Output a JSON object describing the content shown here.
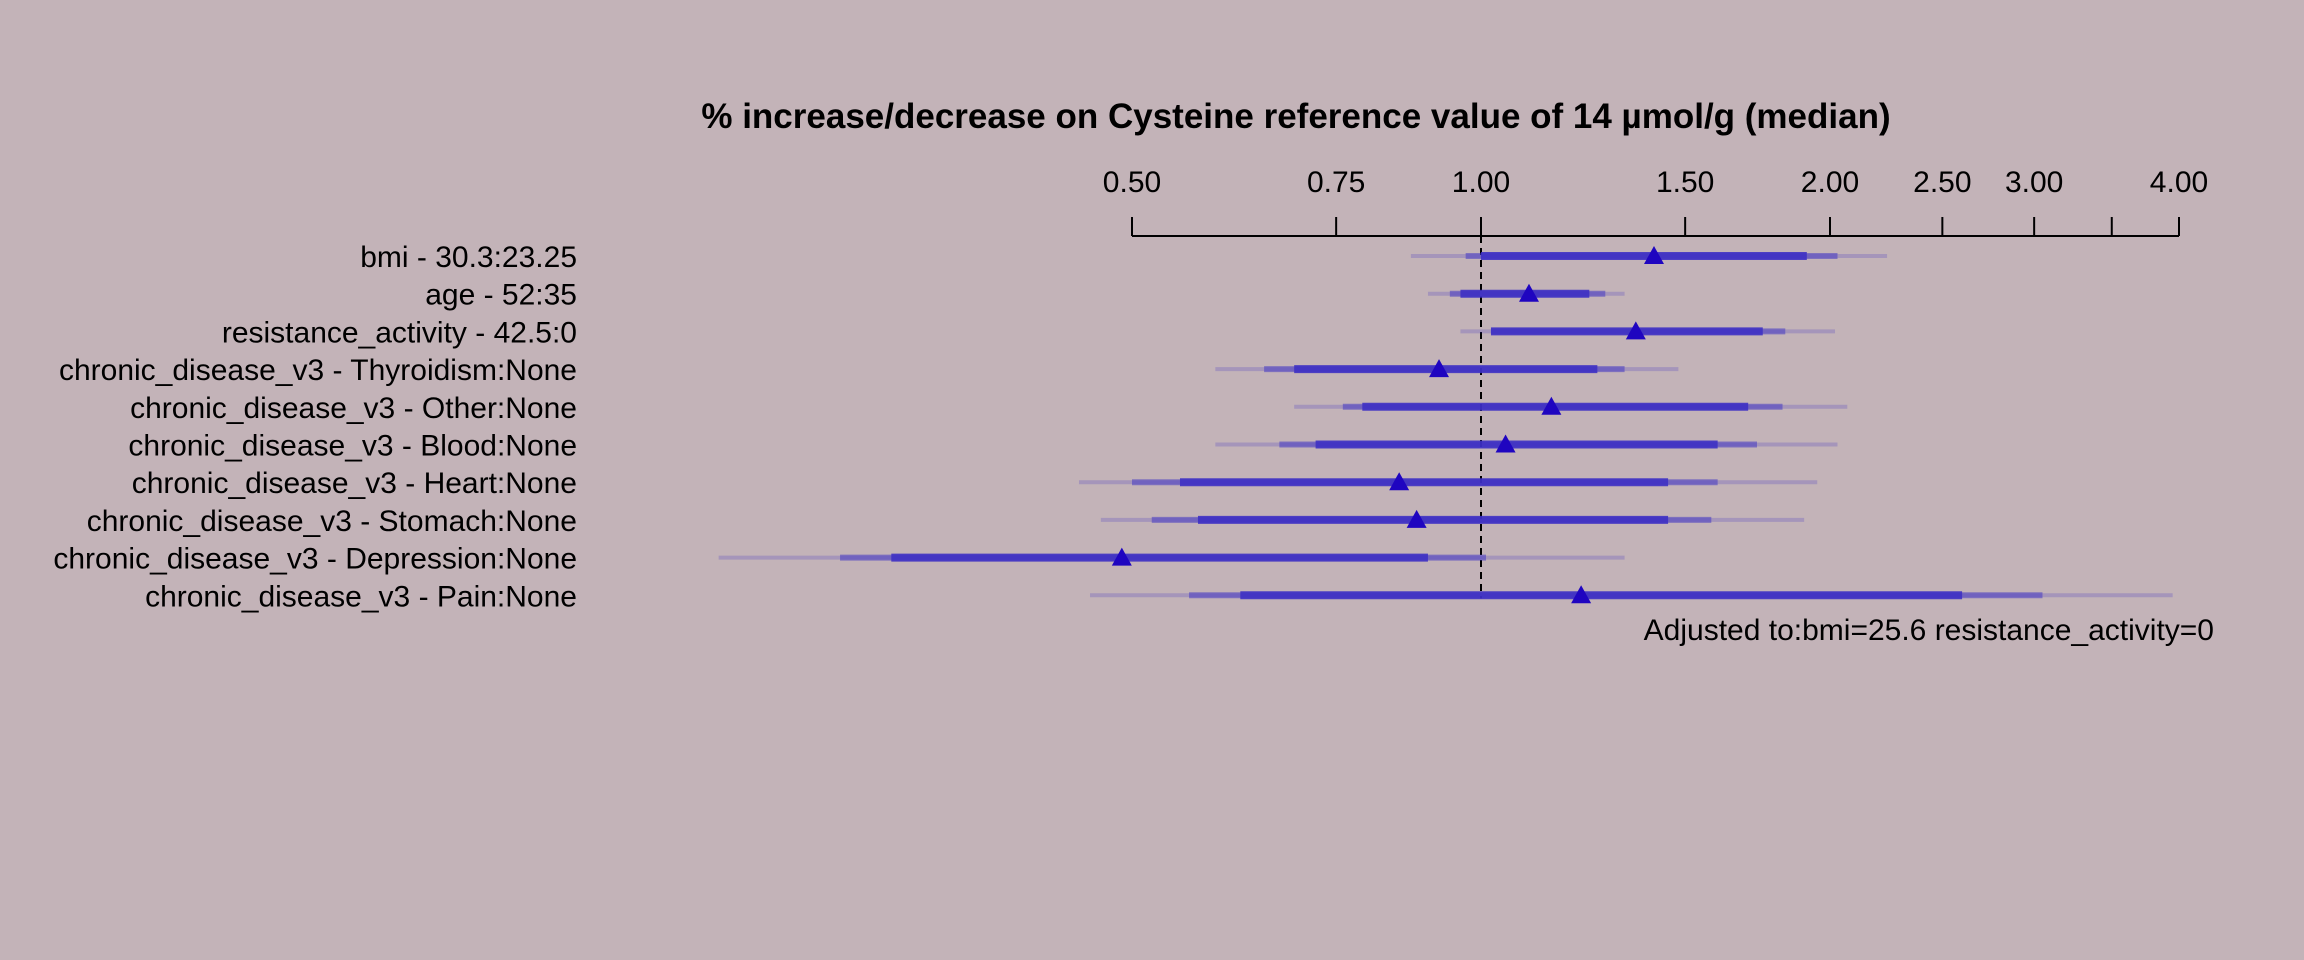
{
  "chart_data": {
    "type": "forest",
    "title": "% increase/decrease on Cysteine reference value of 14 µmol/g (median)",
    "scale": "log",
    "xlim": [
      0.5,
      4.0
    ],
    "ticks": [
      {
        "value": 0.5,
        "label": "0.50"
      },
      {
        "value": 0.75,
        "label": "0.75"
      },
      {
        "value": 1.0,
        "label": "1.00"
      },
      {
        "value": 1.5,
        "label": "1.50"
      },
      {
        "value": 2.0,
        "label": "2.00"
      },
      {
        "value": 2.5,
        "label": "2.50"
      },
      {
        "value": 3.0,
        "label": "3.00"
      },
      {
        "value": 3.5,
        "label": ""
      },
      {
        "value": 4.0,
        "label": "4.00"
      }
    ],
    "reference_line": 1.0,
    "annotation": "Adjusted to:bmi=25.6 resistance_activity=0",
    "colors": {
      "background": "#c3b3b8",
      "bar": "#3c2fc4",
      "point": "#1f05c0",
      "ink": "#000000"
    },
    "rows": [
      {
        "label": "bmi - 30.3:23.25",
        "estimate": 1.41,
        "ci90": [
          1.0,
          1.91
        ],
        "ci95": [
          0.97,
          2.03
        ],
        "ci99": [
          0.87,
          2.24
        ]
      },
      {
        "label": "age - 52:35",
        "estimate": 1.1,
        "ci90": [
          0.96,
          1.24
        ],
        "ci95": [
          0.94,
          1.28
        ],
        "ci99": [
          0.9,
          1.33
        ]
      },
      {
        "label": "resistance_activity - 42.5:0",
        "estimate": 1.36,
        "ci90": [
          1.02,
          1.75
        ],
        "ci95": [
          1.02,
          1.83
        ],
        "ci99": [
          0.96,
          2.02
        ]
      },
      {
        "label": "chronic_disease_v3 - Thyroidism:None",
        "estimate": 0.92,
        "ci90": [
          0.69,
          1.26
        ],
        "ci95": [
          0.65,
          1.33
        ],
        "ci99": [
          0.59,
          1.48
        ]
      },
      {
        "label": "chronic_disease_v3 - Other:None",
        "estimate": 1.15,
        "ci90": [
          0.79,
          1.7
        ],
        "ci95": [
          0.76,
          1.82
        ],
        "ci99": [
          0.69,
          2.07
        ]
      },
      {
        "label": "chronic_disease_v3 - Blood:None",
        "estimate": 1.05,
        "ci90": [
          0.72,
          1.6
        ],
        "ci95": [
          0.67,
          1.73
        ],
        "ci99": [
          0.59,
          2.03
        ]
      },
      {
        "label": "chronic_disease_v3 - Heart:None",
        "estimate": 0.85,
        "ci90": [
          0.55,
          1.45
        ],
        "ci95": [
          0.5,
          1.6
        ],
        "ci99": [
          0.45,
          1.95
        ]
      },
      {
        "label": "chronic_disease_v3 - Stomach:None",
        "estimate": 0.88,
        "ci90": [
          0.57,
          1.45
        ],
        "ci95": [
          0.52,
          1.58
        ],
        "ci99": [
          0.47,
          1.9
        ]
      },
      {
        "label": "chronic_disease_v3 - Depression:None",
        "estimate": 0.49,
        "ci90": [
          0.31,
          0.9
        ],
        "ci95": [
          0.28,
          1.01
        ],
        "ci99": [
          0.22,
          1.33
        ]
      },
      {
        "label": "chronic_disease_v3 - Pain:None",
        "estimate": 1.22,
        "ci90": [
          0.62,
          2.6
        ],
        "ci95": [
          0.56,
          3.05
        ],
        "ci99": [
          0.46,
          3.95
        ]
      }
    ]
  }
}
